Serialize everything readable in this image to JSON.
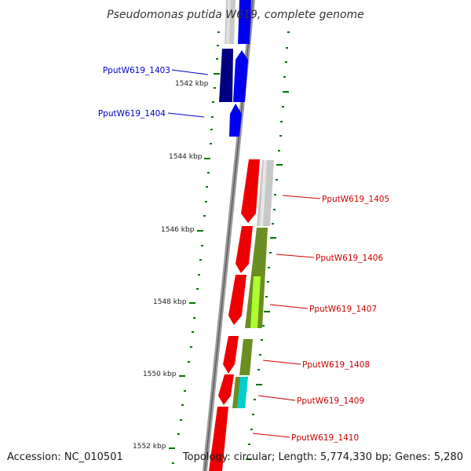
{
  "title": "Pseudomonas putida W619, complete genome",
  "footer": {
    "accession": "Accession: NC_010501",
    "topology": "Topology: circular; Length: 5,774,330 bp; Genes: 5,280"
  },
  "scale_labels": [
    "1542 kbp",
    "1544 kbp",
    "1546 kbp",
    "1548 kbp",
    "1550 kbp",
    "1552 kbp"
  ],
  "genes": [
    {
      "id": "PputW619_1403",
      "strand": "forward",
      "color": "#0000aa"
    },
    {
      "id": "PputW619_1404",
      "strand": "forward",
      "color": "#0000cc"
    },
    {
      "id": "PputW619_1405",
      "strand": "reverse",
      "color": "#cc0000"
    },
    {
      "id": "PputW619_1406",
      "strand": "reverse",
      "color": "#cc0000"
    },
    {
      "id": "PputW619_1407",
      "strand": "reverse",
      "color": "#cc0000"
    },
    {
      "id": "PputW619_1408",
      "strand": "reverse",
      "color": "#cc0000"
    },
    {
      "id": "PputW619_1409",
      "strand": "reverse",
      "color": "#cc0000"
    },
    {
      "id": "PputW619_1410",
      "strand": "reverse",
      "color": "#cc0000"
    }
  ],
  "colors": {
    "forward_dark": "#000080",
    "forward": "#0000ee",
    "reverse": "#ee0000",
    "cog_grey": "#c0c0c0",
    "cog_olive": "#6b8e23",
    "cog_lime": "#adff2f",
    "cog_cyan": "#00ced1",
    "tick": "#007700",
    "backbone": "#808080"
  }
}
